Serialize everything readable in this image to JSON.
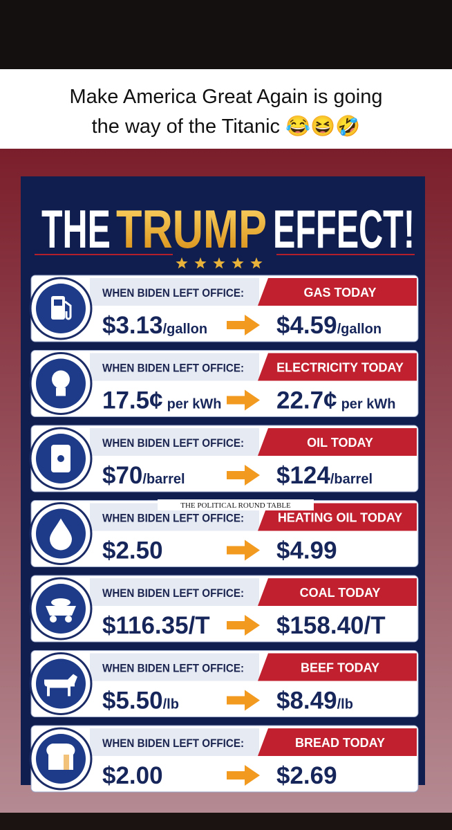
{
  "caption": [
    "Make America Great Again is going",
    "the way of the Titanic 😂😆🤣"
  ],
  "header": {
    "word1": "THE",
    "word2": "TRUMP",
    "word3": "EFFECT!"
  },
  "watermark": "THE POLITICAL ROUND TABLE",
  "rows": [
    {
      "left_label": "WHEN BIDEN LEFT OFFICE:",
      "right_label": "GAS TODAY",
      "before_value": "$3.13",
      "before_unit": "/gallon",
      "after_value": "$4.59",
      "after_unit": "/gallon"
    },
    {
      "left_label": "WHEN BIDEN LEFT OFFICE:",
      "right_label": "ELECTRICITY TODAY",
      "before_value": "17.5¢",
      "before_unit": "per kWh",
      "after_value": "22.7¢",
      "after_unit": "per kWh"
    },
    {
      "left_label": "WHEN BIDEN LEFT OFFICE:",
      "right_label": "OIL TODAY",
      "before_value": "$70",
      "before_unit": "/barrel",
      "after_value": "$124",
      "after_unit": "/barrel"
    },
    {
      "left_label": "WHEN BIDEN LEFT OFFICE:",
      "right_label": "HEATING OIL TODAY",
      "before_value": "$2.50",
      "after_value": "$4.99"
    },
    {
      "left_label": "WHEN BIDEN LEFT OFFICE:",
      "right_label": "COAL TODAY",
      "before_value": "$116.35/T",
      "after_value": "$158.40/T"
    },
    {
      "left_label": "WHEN BIDEN LEFT OFFICE:",
      "right_label": "BEEF TODAY",
      "before_value": "$5.50",
      "before_unit": "/lb",
      "after_value": "$8.49",
      "after_unit": "/lb"
    },
    {
      "left_label": "WHEN BIDEN LEFT OFFICE:",
      "right_label": "BREAD TODAY",
      "before_value": "$2.00",
      "after_value": "$2.69"
    }
  ]
}
